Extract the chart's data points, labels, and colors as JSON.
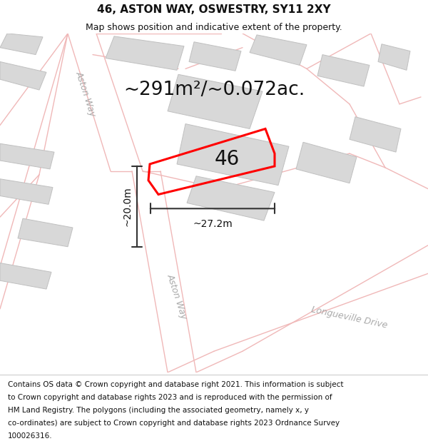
{
  "title": "46, ASTON WAY, OSWESTRY, SY11 2XY",
  "subtitle": "Map shows position and indicative extent of the property.",
  "footer_lines": [
    "Contains OS data © Crown copyright and database right 2021. This information is subject",
    "to Crown copyright and database rights 2023 and is reproduced with the permission of",
    "HM Land Registry. The polygons (including the associated geometry, namely x, y",
    "co-ordinates) are subject to Crown copyright and database rights 2023 Ordnance Survey",
    "100026316."
  ],
  "area_label": "~291m²/~0.072ac.",
  "property_number": "46",
  "dim_width": "~27.2m",
  "dim_height": "~20.0m",
  "road_label_upper": "Aston Way",
  "road_label_lower": "Aston Way",
  "road_label_bottom": "Longueville Drive",
  "bg_color": "#ffffff",
  "map_bg": "#ffffff",
  "road_line_color": "#f0b8b8",
  "bldg_fill": "#d8d8d8",
  "bldg_edge": "#c0c0c0",
  "prop_color": "#ff0000",
  "prop_lw": 2.2,
  "dim_color": "#333333",
  "dim_lw": 1.5,
  "text_color": "#111111",
  "road_text_color": "#aaaaaa",
  "title_fontsize": 11,
  "subtitle_fontsize": 9,
  "area_fontsize": 19,
  "num_fontsize": 20,
  "dim_fontsize": 10,
  "footer_fontsize": 7.5,
  "road_fontsize": 9,
  "road_lw": 1.0
}
